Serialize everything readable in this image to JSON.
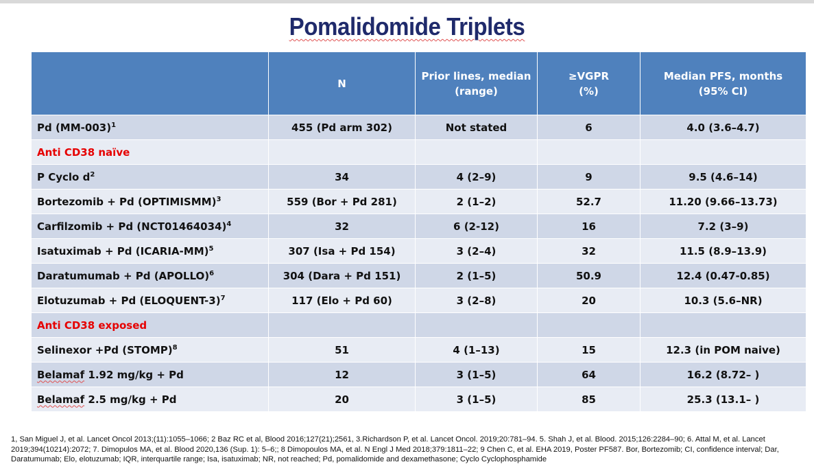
{
  "title": "Pomalidomide Triplets",
  "headers": [
    "",
    "N",
    "Prior lines, median (range)",
    "≥VGPR (%)",
    "Median PFS, months (95% CI)"
  ],
  "rows": [
    {
      "type": "data",
      "name": "Pd (MM-003)",
      "ref": "1",
      "n": "455 (Pd arm 302)",
      "prior": "Not stated",
      "vgpr": "6",
      "pfs": "4.0 (3.6–4.7)"
    },
    {
      "type": "section",
      "name": "Anti CD38 naïve"
    },
    {
      "type": "data",
      "name": "P Cyclo d",
      "ref": "2",
      "n": "34",
      "prior": "4 (2–9)",
      "vgpr": "9",
      "pfs": "9.5 (4.6–14)"
    },
    {
      "type": "data",
      "name": "Bortezomib + Pd (OPTIMISMM)",
      "ref": "3",
      "n": "559 (Bor + Pd 281)",
      "prior": "2 (1–2)",
      "vgpr": "52.7",
      "pfs": "11.20 (9.66–13.73)"
    },
    {
      "type": "data",
      "name": "Carfilzomib + Pd (NCT01464034)",
      "ref": "4",
      "n": "32",
      "prior": "6 (2-12)",
      "vgpr": "16",
      "pfs": "7.2 (3–9)"
    },
    {
      "type": "data",
      "name": "Isatuximab + Pd (ICARIA-MM)",
      "ref": "5",
      "n": "307  (Isa + Pd 154)",
      "prior": "3 (2–4)",
      "vgpr": "32",
      "pfs": "11.5 (8.9–13.9)"
    },
    {
      "type": "data",
      "name": "Daratumumab + Pd (APOLLO)",
      "ref": "6",
      "n": "304  (Dara + Pd 151)",
      "prior": "2 (1–5)",
      "vgpr": "50.9",
      "pfs": "12.4 (0.47-0.85)"
    },
    {
      "type": "data",
      "name": "Elotuzumab + Pd (ELOQUENT-3)",
      "ref": "7",
      "n": "117 (Elo + Pd 60)",
      "prior": "3 (2–8)",
      "vgpr": "20",
      "pfs": "10.3 (5.6–NR)"
    },
    {
      "type": "section",
      "name": "Anti CD38 exposed"
    },
    {
      "type": "data",
      "name": "Selinexor +Pd (STOMP)",
      "ref": "8",
      "n": "51",
      "prior": "4 (1–13)",
      "vgpr": "15",
      "pfs": "12.3 (in POM naive)"
    },
    {
      "type": "data",
      "name": "Belamaf 1.92 mg/kg + Pd",
      "ref": "",
      "n": "12",
      "prior": "3 (1–5)",
      "vgpr": "64",
      "pfs": "16.2 (8.72–  )"
    },
    {
      "type": "data",
      "name": "Belamaf 2.5 mg/kg + Pd",
      "ref": "",
      "n": "20",
      "prior": "3 (1–5)",
      "vgpr": "85",
      "pfs": "25.3  (13.1–  )"
    }
  ],
  "footnote": "1, San Miguel J, et al. Lancet Oncol 2013;(11):1055–1066; 2 Baz RC et al, Blood 2016;127(21);2561, 3.Richardson P, et al. Lancet Oncol. 2019;20:781–94. 5. Shah J, et al. Blood. 2015;126:2284–90; 6. Attal M, et al. Lancet 2019;394(10214):2072; 7. Dimopulos MA, et al. Blood 2020,136 (Sup. 1): 5–6;; 8 Dimopoulos MA, et al. N Engl J Med 2018;379:1811–22; 9 Chen C, et al. EHA 2019, Poster PF587. Bor, Bortezomib; CI, confidence interval; Dar, Daratumumab; Elo, elotuzumab; IQR, interquartile range; Isa, isatuximab; NR, not reached; Pd, pomalidomide and dexamethasone; Cyclo Cyclophosphamide"
}
